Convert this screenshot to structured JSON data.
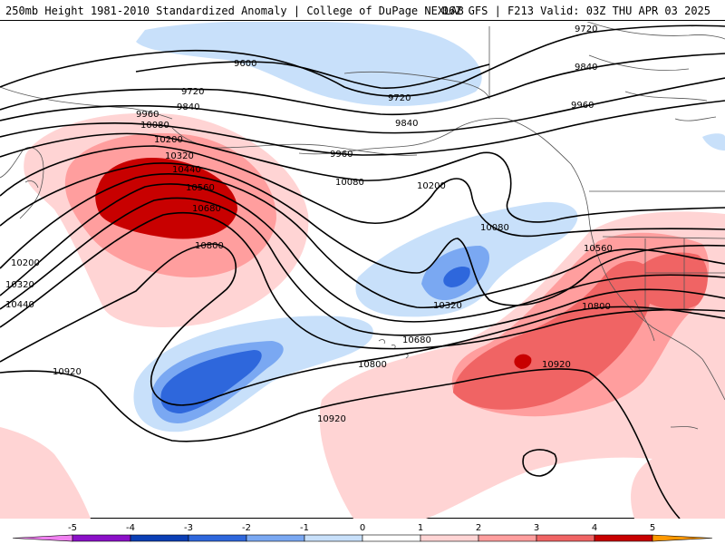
{
  "header": {
    "title_left": "250mb Height 1981-2010 Standardized Anomaly | College of DuPage NEXLAB",
    "title_right": "06Z GFS | F213 Valid: 03Z THU APR 03 2025"
  },
  "colors": {
    "neg_1": "#c8e0fa",
    "neg_2": "#7aa8f2",
    "neg_3": "#2e67dc",
    "neg_4": "#0b3fb5",
    "neg_5": "#8b10c8",
    "neg_6": "#f080f0",
    "pos_1": "#ffd4d4",
    "pos_2": "#ff9e9e",
    "pos_3": "#f06464",
    "pos_4": "#c80000",
    "pos_5": "#ff9900",
    "pos_6": "#ffd020",
    "contour": "#000000",
    "coast": "#555555"
  },
  "contour_labels": {
    "l9600": "9600",
    "l9720a": "9720",
    "l9720b": "9720",
    "l9720c": "9720",
    "l9840a": "9840",
    "l9840b": "9840",
    "l9840c": "9840",
    "l9960a": "9960",
    "l9960b": "9960",
    "l9960c": "9960",
    "l10080a": "10080",
    "l10080b": "10080",
    "l10080c": "10080",
    "l10200a": "10200",
    "l10200b": "10200",
    "l10200c": "10200",
    "l10320a": "10320",
    "l10320b": "10320",
    "l10320c": "10320",
    "l10440a": "10440",
    "l10440b": "10440",
    "l10560a": "10560",
    "l10560b": "10560",
    "l10680a": "10680",
    "l10680b": "10680",
    "l10800a": "10800",
    "l10800b": "10800",
    "l10800c": "10800",
    "l10920a": "10920",
    "l10920b": "10920",
    "l10920c": "10920"
  },
  "colorbar": {
    "ticks": [
      "-5",
      "-4",
      "-3",
      "-2",
      "-1",
      "0",
      "1",
      "2",
      "3",
      "4",
      "5"
    ]
  }
}
